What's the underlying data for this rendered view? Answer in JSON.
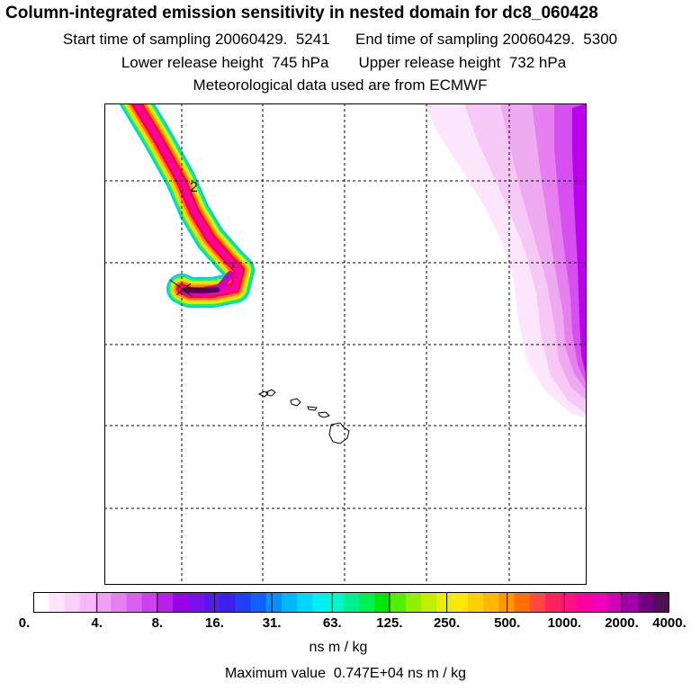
{
  "header": {
    "title": "Column-integrated emission sensitivity in nested domain for dc8_060428",
    "start_label": "Start time of sampling",
    "start_value": "20060429.  5241",
    "end_label": "End time of sampling",
    "end_value": "20060429.  5300",
    "lower_label": "Lower release height",
    "lower_value": "745 hPa",
    "upper_label": "Upper release height",
    "upper_value": "732 hPa",
    "met_line": "Meteorological data used are from ECMWF"
  },
  "map": {
    "contour_label": "2",
    "plume_colors": [
      "#00c8ff",
      "#00ff66",
      "#c8ff00",
      "#ffd200",
      "#ff7f00",
      "#ff0040",
      "#ff00a0",
      "#c800c8",
      "#500050"
    ],
    "background_field_colors": [
      "#fbe6fb",
      "#f5c8f5",
      "#eeaaee",
      "#e680f0",
      "#d650f0",
      "#bb00ee"
    ]
  },
  "colorbar": {
    "colors": [
      "#ffffff",
      "#fde6fd",
      "#fad0fa",
      "#f6b8f8",
      "#f0a0f4",
      "#e680f0",
      "#da60ee",
      "#cc40ee",
      "#b820e8",
      "#9a00e6",
      "#7a10ee",
      "#5a18f0",
      "#3c20f0",
      "#2040f8",
      "#1060ff",
      "#0090ff",
      "#00b8ff",
      "#00d8ff",
      "#00f0f0",
      "#00f8c8",
      "#00f090",
      "#00f050",
      "#00e800",
      "#50f000",
      "#90f000",
      "#c0f000",
      "#e6f000",
      "#ffe800",
      "#ffd000",
      "#ffb800",
      "#ff9800",
      "#ff7000",
      "#ff4840",
      "#ff2060",
      "#ff1080",
      "#ff00a0",
      "#f000b8",
      "#d000b8",
      "#a000a8",
      "#700080",
      "#501050"
    ],
    "tick_labels": [
      "0.",
      "4.",
      "8.",
      "16.",
      "31.",
      "63.",
      "125.",
      "250.",
      "500.",
      "1000.",
      "2000.",
      "4000."
    ],
    "units": "ns m / kg",
    "max_label": "Maximum value",
    "max_value": "0.747E+04 ns m / kg"
  }
}
